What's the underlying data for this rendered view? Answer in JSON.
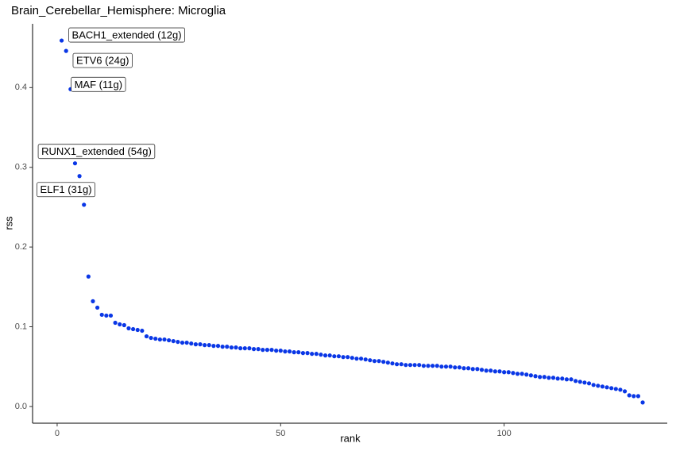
{
  "chart_data": {
    "type": "scatter",
    "title": "Brain_Cerebellar_Hemisphere: Microglia",
    "x_label": "rank",
    "y_label": "rss",
    "color": "#0a37e6",
    "grid": false,
    "xlim": [
      -5.5,
      136.5
    ],
    "ylim": [
      -0.021,
      0.48
    ],
    "xticks": [
      0,
      50,
      100
    ],
    "yticks": [
      {
        "value": 0,
        "label": "0.0"
      },
      0.1,
      0.2,
      0.3,
      0.4
    ],
    "x": [
      1,
      2,
      3,
      4,
      5,
      6,
      7,
      8,
      9,
      10,
      11,
      12,
      13,
      14,
      15,
      16,
      17,
      18,
      19,
      20,
      21,
      22,
      23,
      24,
      25,
      26,
      27,
      28,
      29,
      30,
      31,
      32,
      33,
      34,
      35,
      36,
      37,
      38,
      39,
      40,
      41,
      42,
      43,
      44,
      45,
      46,
      47,
      48,
      49,
      50,
      51,
      52,
      53,
      54,
      55,
      56,
      57,
      58,
      59,
      60,
      61,
      62,
      63,
      64,
      65,
      66,
      67,
      68,
      69,
      70,
      71,
      72,
      73,
      74,
      75,
      76,
      77,
      78,
      79,
      80,
      81,
      82,
      83,
      84,
      85,
      86,
      87,
      88,
      89,
      90,
      91,
      92,
      93,
      94,
      95,
      96,
      97,
      98,
      99,
      100,
      101,
      102,
      103,
      104,
      105,
      106,
      107,
      108,
      109,
      110,
      111,
      112,
      113,
      114,
      115,
      116,
      117,
      118,
      119,
      120,
      121,
      122,
      123,
      124,
      125,
      126,
      127,
      128,
      129,
      130,
      131
    ],
    "values": [
      0.459,
      0.446,
      0.398,
      0.305,
      0.289,
      0.253,
      0.163,
      0.132,
      0.124,
      0.115,
      0.114,
      0.114,
      0.105,
      0.103,
      0.102,
      0.098,
      0.097,
      0.096,
      0.095,
      0.088,
      0.086,
      0.085,
      0.084,
      0.084,
      0.083,
      0.082,
      0.081,
      0.08,
      0.08,
      0.079,
      0.078,
      0.078,
      0.077,
      0.077,
      0.076,
      0.076,
      0.075,
      0.075,
      0.074,
      0.074,
      0.073,
      0.073,
      0.073,
      0.072,
      0.072,
      0.071,
      0.071,
      0.071,
      0.07,
      0.07,
      0.069,
      0.069,
      0.068,
      0.068,
      0.067,
      0.067,
      0.066,
      0.066,
      0.065,
      0.064,
      0.064,
      0.063,
      0.063,
      0.062,
      0.062,
      0.061,
      0.06,
      0.06,
      0.059,
      0.058,
      0.057,
      0.057,
      0.056,
      0.055,
      0.054,
      0.053,
      0.053,
      0.052,
      0.052,
      0.052,
      0.052,
      0.051,
      0.051,
      0.051,
      0.051,
      0.05,
      0.05,
      0.05,
      0.049,
      0.049,
      0.048,
      0.048,
      0.047,
      0.047,
      0.046,
      0.045,
      0.045,
      0.044,
      0.044,
      0.043,
      0.043,
      0.042,
      0.041,
      0.041,
      0.04,
      0.039,
      0.038,
      0.037,
      0.037,
      0.036,
      0.036,
      0.035,
      0.035,
      0.034,
      0.034,
      0.032,
      0.031,
      0.03,
      0.029,
      0.027,
      0.026,
      0.025,
      0.024,
      0.023,
      0.022,
      0.021,
      0.019,
      0.014,
      0.013,
      0.013,
      0.005
    ],
    "point_labels": [
      "BACH1_extended (12g)",
      "ETV6 (24g)",
      "MAF (11g)",
      "RUNX1_extended (54g)",
      "ELF1 (31g)",
      null,
      null,
      null,
      null,
      null,
      null,
      null,
      null,
      null,
      null,
      null,
      null,
      null,
      null,
      null,
      null,
      null,
      null,
      null,
      null,
      null,
      null,
      null,
      null,
      null,
      null,
      null,
      null,
      null,
      null,
      null,
      null,
      null,
      null,
      null,
      null,
      null,
      null,
      null,
      null,
      null,
      null,
      null,
      null,
      null,
      null,
      null,
      null,
      null,
      null,
      null,
      null,
      null,
      null,
      null,
      null,
      null,
      null,
      null,
      null,
      null,
      null,
      null,
      null,
      null,
      null,
      null,
      null,
      null,
      null,
      null,
      null,
      null,
      null,
      null,
      null,
      null,
      null,
      null,
      null,
      null,
      null,
      null,
      null,
      null,
      null,
      null,
      null,
      null,
      null,
      null,
      null,
      null,
      null,
      null,
      null,
      null,
      null,
      null,
      null,
      null,
      null,
      null,
      null,
      null,
      null,
      null,
      null,
      null,
      null,
      null,
      null,
      null,
      null,
      null,
      null,
      null,
      null,
      null,
      null,
      null,
      null,
      null,
      null,
      null,
      null
    ]
  }
}
